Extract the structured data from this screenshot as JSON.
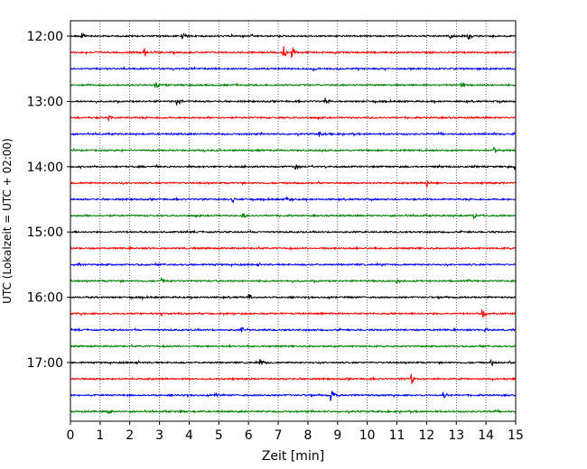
{
  "chart_data": {
    "type": "line",
    "title": "",
    "xlabel": "Zeit  [min]",
    "ylabel": "UTC (Lokalzeit = UTC + 02:00)",
    "xlim": [
      0,
      15
    ],
    "xticks": [
      0,
      1,
      2,
      3,
      4,
      5,
      6,
      7,
      8,
      9,
      10,
      11,
      12,
      13,
      14,
      15
    ],
    "grid": "vertical dotted",
    "trace_interval_min": 15,
    "trace_start": "12:00",
    "trace_count": 24,
    "color_cycle": [
      "#000000",
      "#ff0000",
      "#0000ff",
      "#008000"
    ],
    "yticks": [
      {
        "label": "12:00",
        "trace_index": 0
      },
      {
        "label": "13:00",
        "trace_index": 4
      },
      {
        "label": "14:00",
        "trace_index": 8
      },
      {
        "label": "15:00",
        "trace_index": 12
      },
      {
        "label": "16:00",
        "trace_index": 16
      },
      {
        "label": "17:00",
        "trace_index": 20
      }
    ],
    "events": [
      {
        "trace": 0,
        "t": 0.4,
        "amp": 0.6
      },
      {
        "trace": 0,
        "t": 3.8,
        "amp": 0.5
      },
      {
        "trace": 0,
        "t": 12.8,
        "amp": 0.6
      },
      {
        "trace": 0,
        "t": 13.4,
        "amp": 0.8
      },
      {
        "trace": 1,
        "t": 2.5,
        "amp": 0.9
      },
      {
        "trace": 1,
        "t": 7.2,
        "amp": 1.4
      },
      {
        "trace": 1,
        "t": 7.5,
        "amp": 1.0
      },
      {
        "trace": 2,
        "t": 8.2,
        "amp": 0.4
      },
      {
        "trace": 3,
        "t": 2.9,
        "amp": 0.5
      },
      {
        "trace": 3,
        "t": 13.2,
        "amp": 0.5
      },
      {
        "trace": 4,
        "t": 3.6,
        "amp": 0.8
      },
      {
        "trace": 4,
        "t": 8.6,
        "amp": 0.6
      },
      {
        "trace": 5,
        "t": 1.3,
        "amp": 0.5
      },
      {
        "trace": 6,
        "t": 8.4,
        "amp": 0.6
      },
      {
        "trace": 7,
        "t": 14.3,
        "amp": 0.7
      },
      {
        "trace": 8,
        "t": 7.6,
        "amp": 0.6
      },
      {
        "trace": 8,
        "t": 15.0,
        "amp": 0.5
      },
      {
        "trace": 9,
        "t": 12.0,
        "amp": 0.9
      },
      {
        "trace": 10,
        "t": 5.5,
        "amp": 0.6
      },
      {
        "trace": 10,
        "t": 7.3,
        "amp": 0.5
      },
      {
        "trace": 11,
        "t": 5.8,
        "amp": 0.7
      },
      {
        "trace": 11,
        "t": 13.6,
        "amp": 0.5
      },
      {
        "trace": 14,
        "t": 0.3,
        "amp": 0.4
      },
      {
        "trace": 15,
        "t": 3.1,
        "amp": 0.7
      },
      {
        "trace": 15,
        "t": 11.0,
        "amp": 0.5
      },
      {
        "trace": 16,
        "t": 6.0,
        "amp": 0.8
      },
      {
        "trace": 17,
        "t": 13.9,
        "amp": 0.9
      },
      {
        "trace": 18,
        "t": 5.8,
        "amp": 0.5
      },
      {
        "trace": 18,
        "t": 14.0,
        "amp": 0.5
      },
      {
        "trace": 20,
        "t": 6.4,
        "amp": 0.9
      },
      {
        "trace": 20,
        "t": 14.2,
        "amp": 0.5
      },
      {
        "trace": 21,
        "t": 11.5,
        "amp": 0.9
      },
      {
        "trace": 22,
        "t": 8.8,
        "amp": 1.3
      },
      {
        "trace": 22,
        "t": 4.9,
        "amp": 0.5
      },
      {
        "trace": 22,
        "t": 12.6,
        "amp": 0.5
      },
      {
        "trace": 23,
        "t": 1.3,
        "amp": 0.7
      },
      {
        "trace": 23,
        "t": 3.7,
        "amp": 0.4
      }
    ]
  }
}
